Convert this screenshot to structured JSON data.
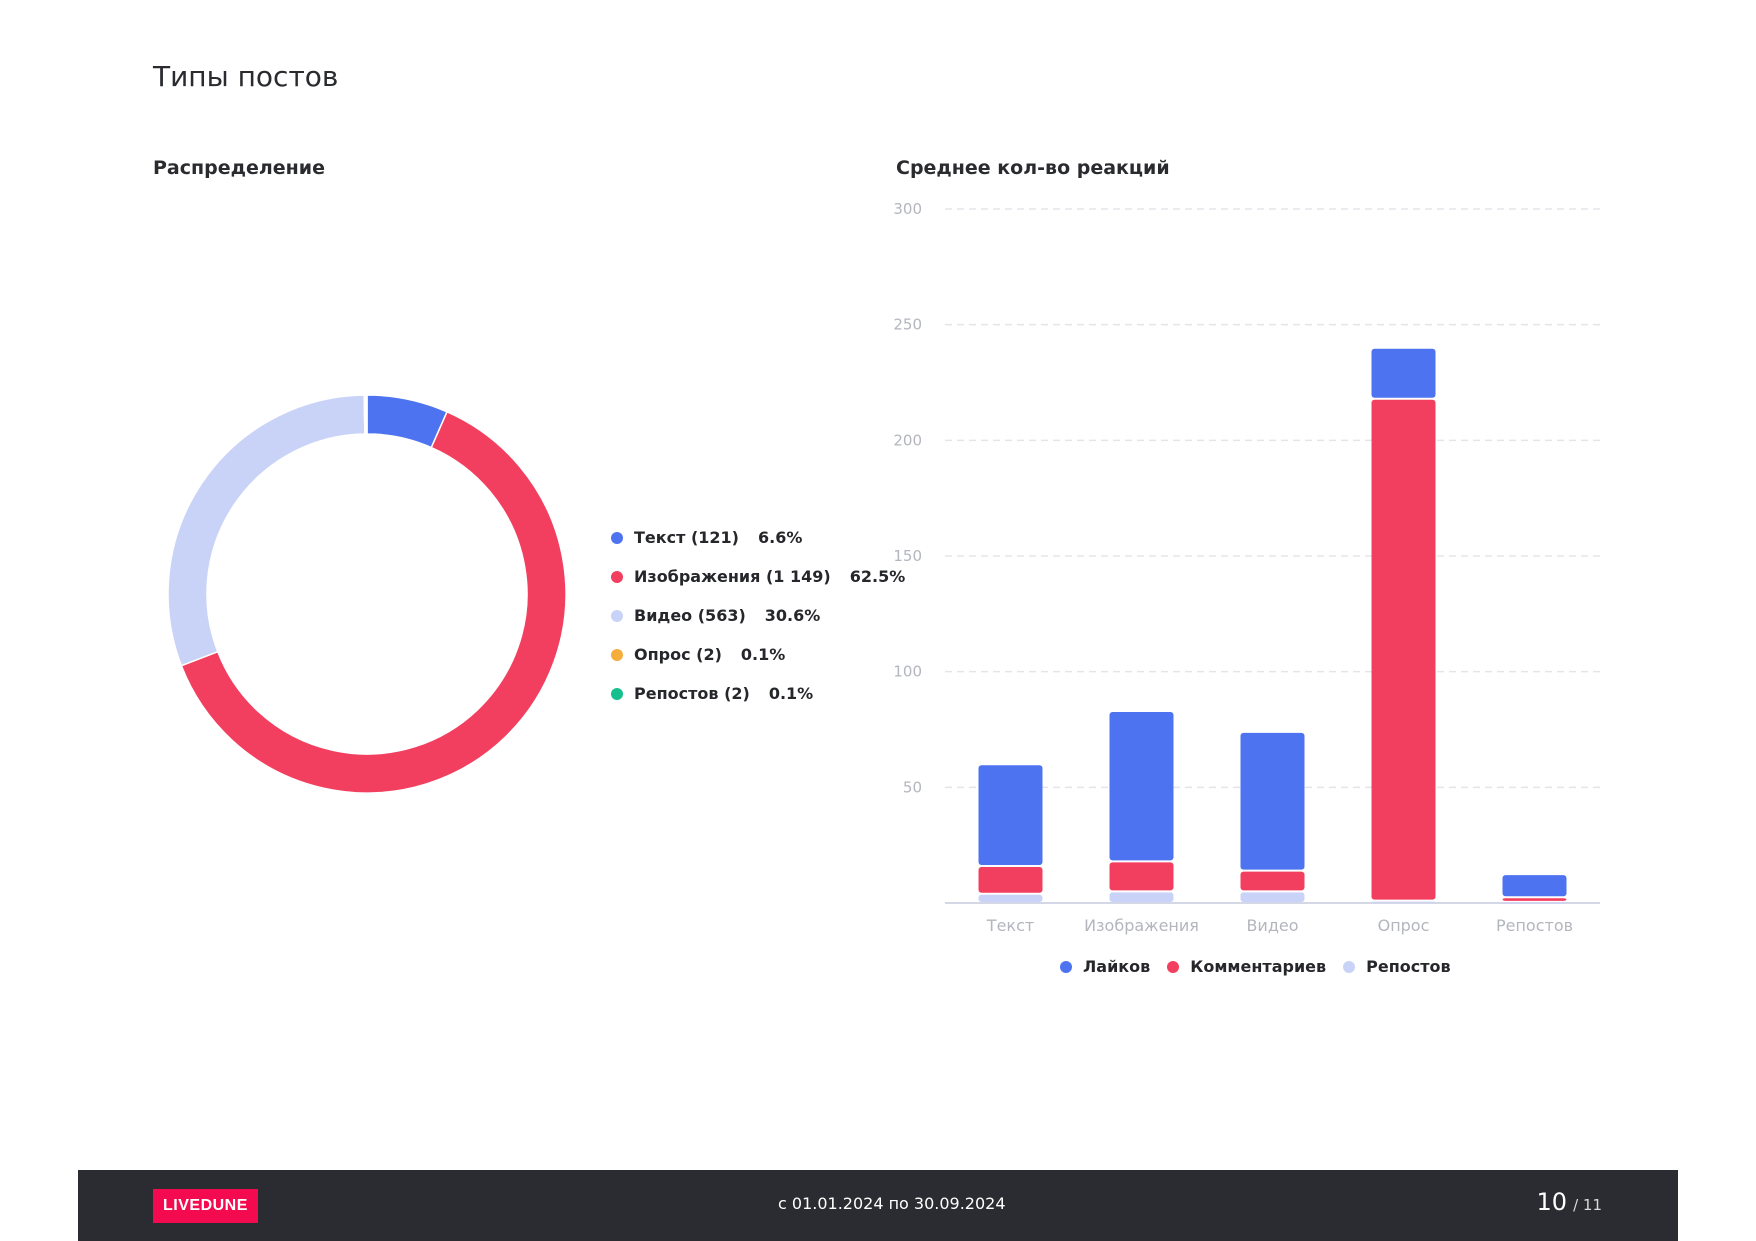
{
  "page": {
    "title": "Типы постов"
  },
  "sections": {
    "distribution_title": "Распределение",
    "reactions_title": "Среднее кол-во реакций"
  },
  "colors": {
    "text": "#4e73f0",
    "images": "#f33f5f",
    "video": "#c9d3f8",
    "poll": "#f5ad3c",
    "reposts": "#17bf8e",
    "likes": "#4e73f0",
    "comments": "#f33f5f",
    "shares": "#c9d3f8"
  },
  "chart_data": [
    {
      "type": "pie",
      "style": "donut",
      "title": "Распределение",
      "slices": [
        {
          "label": "Текст (121)",
          "value": 121,
          "percent": "6.6%",
          "color": "#4e73f0"
        },
        {
          "label": "Изображения (1 149)",
          "value": 1149,
          "percent": "62.5%",
          "color": "#f33f5f"
        },
        {
          "label": "Видео (563)",
          "value": 563,
          "percent": "30.6%",
          "color": "#c9d3f8"
        },
        {
          "label": "Опрос (2)",
          "value": 2,
          "percent": "0.1%",
          "color": "#f5ad3c"
        },
        {
          "label": "Репостов (2)",
          "value": 2,
          "percent": "0.1%",
          "color": "#17bf8e"
        }
      ],
      "legend_position": "right"
    },
    {
      "type": "bar",
      "stacked": true,
      "title": "Среднее кол-во реакций",
      "categories": [
        "Текст",
        "Изображения",
        "Видео",
        "Опрос",
        "Репостов"
      ],
      "series": [
        {
          "name": "Репостов",
          "values": [
            4,
            5,
            5,
            1,
            0.5
          ],
          "color": "#c9d3f8"
        },
        {
          "name": "Комментариев",
          "values": [
            12,
            13,
            9,
            217,
            2
          ],
          "color": "#f33f5f"
        },
        {
          "name": "Лайков",
          "values": [
            44,
            65,
            60,
            22,
            10
          ],
          "color": "#4e73f0"
        }
      ],
      "legend_order": [
        "Лайков",
        "Комментариев",
        "Репостов"
      ],
      "ylim": [
        0,
        300
      ],
      "yticks": [
        50,
        100,
        150,
        200,
        250,
        300
      ],
      "grid": true,
      "legend_position": "bottom"
    }
  ],
  "footer": {
    "logo": "LIVEDUNE",
    "date_range": "с 01.01.2024 по 30.09.2024",
    "page_current": "10",
    "page_total": "/ 11"
  }
}
